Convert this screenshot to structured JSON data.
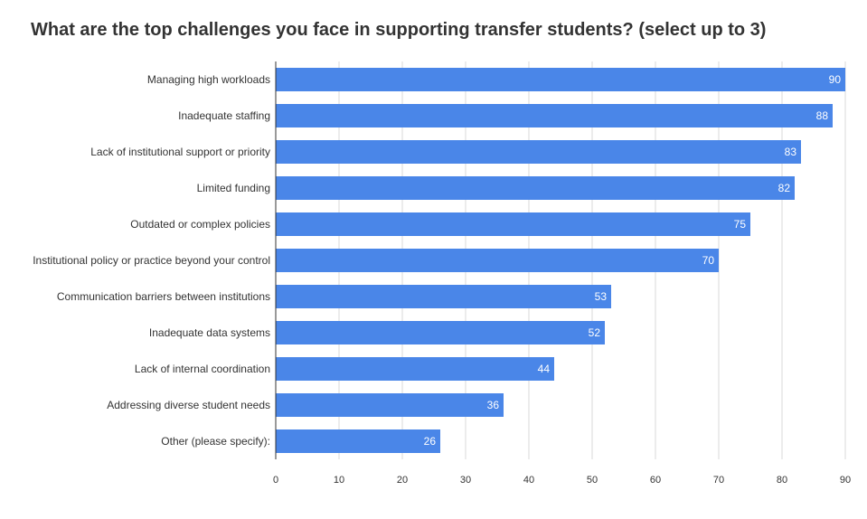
{
  "chart_data": {
    "type": "bar",
    "orientation": "horizontal",
    "title": "What are the top challenges you face in supporting transfer students? (select up to 3)",
    "categories": [
      "Managing high workloads",
      "Inadequate staffing",
      "Lack of institutional support or priority",
      "Limited funding",
      "Outdated or complex policies",
      "Institutional policy or practice beyond your control",
      "Communication barriers between institutions",
      "Inadequate data systems",
      "Lack of internal coordination",
      "Addressing diverse student needs",
      "Other (please specify):"
    ],
    "values": [
      90,
      88,
      83,
      82,
      75,
      70,
      53,
      52,
      44,
      36,
      26
    ],
    "xlim": [
      0,
      90
    ],
    "xticks": [
      0,
      10,
      20,
      30,
      40,
      50,
      60,
      70,
      80,
      90
    ],
    "grid": true,
    "bar_color": "#4a86e8",
    "data_labels": true
  }
}
